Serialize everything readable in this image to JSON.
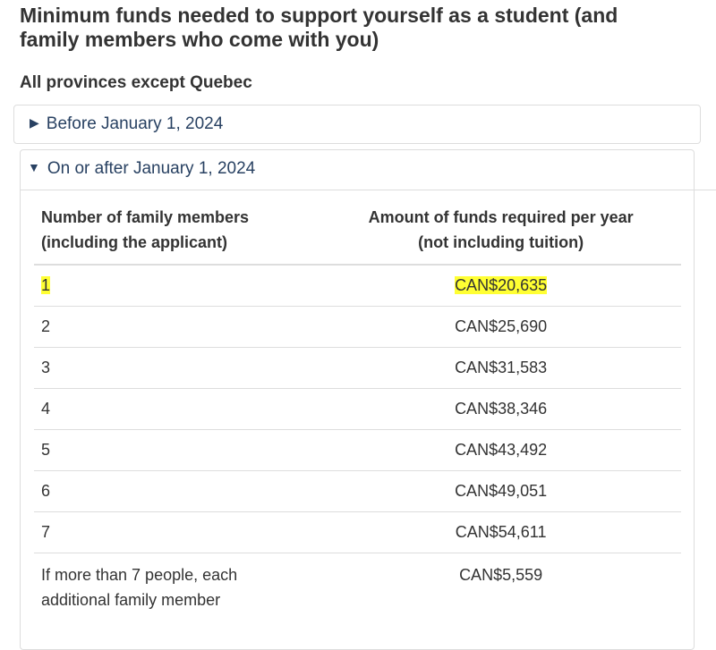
{
  "heading": "Minimum funds needed to support yourself as a student (and family members who come with you)",
  "subheading": "All provinces except Quebec",
  "before_section": {
    "label": "Before January 1, 2024",
    "expanded": false,
    "icon": "triangle-right-icon"
  },
  "after_section": {
    "label": "On or after January 1, 2024",
    "expanded": true,
    "icon": "triangle-down-icon"
  },
  "table": {
    "col1_header_line1": "Number of family members",
    "col1_header_line2": "(including the applicant)",
    "col2_header_line1": "Amount of funds required per year",
    "col2_header_line2": "(not including tuition)",
    "rows": [
      {
        "members": "1",
        "amount": "CAN$20,635",
        "highlighted": true
      },
      {
        "members": "2",
        "amount": "CAN$25,690"
      },
      {
        "members": "3",
        "amount": "CAN$31,583"
      },
      {
        "members": "4",
        "amount": "CAN$38,346"
      },
      {
        "members": "5",
        "amount": "CAN$43,492"
      },
      {
        "members": "6",
        "amount": "CAN$49,051"
      },
      {
        "members": "7",
        "amount": "CAN$54,611"
      }
    ],
    "extra_row": {
      "members_line1": "If more than 7 people, each",
      "members_line2": "additional family member",
      "amount": "CAN$5,559"
    }
  },
  "colors": {
    "link": "#284162",
    "highlight": "#ffff33",
    "border": "#dddddd"
  }
}
